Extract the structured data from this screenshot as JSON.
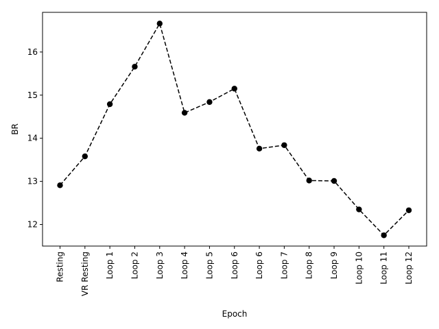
{
  "chart_data": {
    "type": "line",
    "categories": [
      "Resting",
      "VR Resting",
      "Loop 1",
      "Loop 2",
      "Loop 3",
      "Loop 4",
      "Loop 5",
      "Loop 6",
      "Loop 6",
      "Loop 7",
      "Loop 8",
      "Loop 9",
      "Loop 10",
      "Loop 11",
      "Loop 12"
    ],
    "series": [
      {
        "values": [
          12.91,
          13.58,
          14.79,
          15.66,
          16.66,
          14.59,
          14.84,
          15.15,
          13.76,
          13.84,
          13.02,
          13.01,
          12.35,
          11.75,
          12.33
        ],
        "color": "#000000",
        "line_style": "dashed",
        "marker": "circle"
      }
    ],
    "xlabel": "Epoch",
    "ylabel": "BR",
    "ylim": [
      11.5,
      16.92
    ],
    "yticks": [
      12,
      13,
      14,
      15,
      16
    ],
    "grid": false
  }
}
